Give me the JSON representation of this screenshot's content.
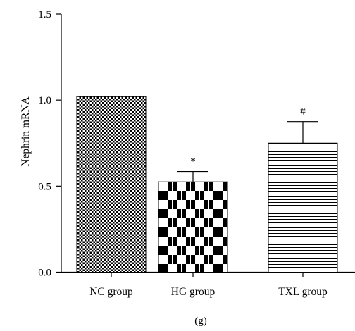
{
  "chart_data": {
    "type": "bar",
    "categories": [
      "NC group",
      "HG group",
      "TXL group"
    ],
    "values": [
      1.02,
      0.525,
      0.75
    ],
    "errors": [
      0,
      0.06,
      0.125
    ],
    "significance": [
      "",
      "*",
      "#"
    ],
    "patterns": [
      "fine-checker",
      "coarse-checker",
      "horizontal-stripes"
    ],
    "ylabel": "Nephrin mRNA",
    "xlabel": "",
    "ylim": [
      0,
      1.5
    ],
    "yticks": [
      0.0,
      0.5,
      1.0,
      1.5
    ],
    "ytick_labels": [
      "0.0",
      "0.5",
      "1.0",
      "1.5"
    ],
    "grid": false,
    "colors": {
      "bar_fill": "#000000",
      "background": "#ffffff"
    }
  },
  "caption": "(g)"
}
